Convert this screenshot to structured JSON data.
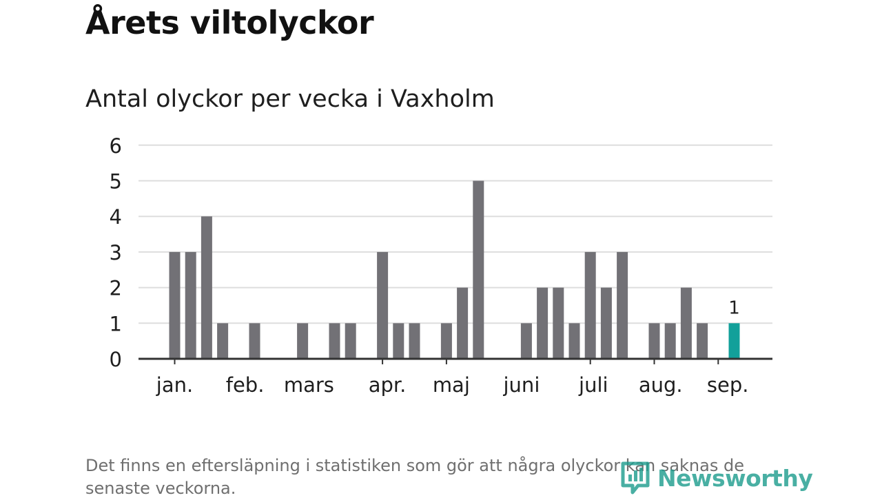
{
  "header": {
    "title": "Årets viltolyckor",
    "subtitle": "Antal olyckor per vecka i Vaxholm"
  },
  "footer": {
    "note": "Det finns en eftersläpning i statistiken som gör att några olyckor kan saknas de senaste veckorna.",
    "brand": "Newsworthy"
  },
  "colors": {
    "bar": "#727176",
    "highlight": "#12a09a",
    "grid": "#dddddd",
    "axis": "#333333",
    "text": "#1e1e1e",
    "brand": "#1c9c8d"
  },
  "chart_data": {
    "type": "bar",
    "title": "Antal olyckor per vecka i Vaxholm",
    "xlabel": "",
    "ylabel": "",
    "ylim": [
      0,
      6
    ],
    "yticks": [
      0,
      1,
      2,
      3,
      4,
      5,
      6
    ],
    "grid": true,
    "weeks": [
      1,
      2,
      3,
      4,
      5,
      6,
      7,
      8,
      9,
      10,
      11,
      12,
      13,
      14,
      15,
      16,
      17,
      18,
      19,
      20,
      21,
      22,
      23,
      24,
      25,
      26,
      27,
      28,
      29,
      30,
      31,
      32,
      33,
      34,
      35,
      36,
      37
    ],
    "values": [
      3,
      3,
      4,
      1,
      0,
      1,
      0,
      0,
      1,
      0,
      1,
      1,
      0,
      3,
      1,
      1,
      0,
      1,
      2,
      5,
      0,
      0,
      1,
      2,
      2,
      1,
      3,
      2,
      3,
      0,
      1,
      1,
      2,
      1,
      0,
      1,
      null
    ],
    "highlight_week": 36,
    "highlight_label": "1",
    "month_labels": [
      {
        "label": "jan.",
        "week": 1
      },
      {
        "label": "feb.",
        "week": 5.4
      },
      {
        "label": "mars",
        "week": 9.4
      },
      {
        "label": "apr.",
        "week": 14.3
      },
      {
        "label": "maj",
        "week": 18.3
      },
      {
        "label": "juni",
        "week": 22.7
      },
      {
        "label": "juli",
        "week": 27.2
      },
      {
        "label": "aug.",
        "week": 31.4
      },
      {
        "label": "sep.",
        "week": 35.6
      }
    ],
    "month_ticks": [
      1,
      14,
      18,
      27,
      31,
      35
    ]
  }
}
